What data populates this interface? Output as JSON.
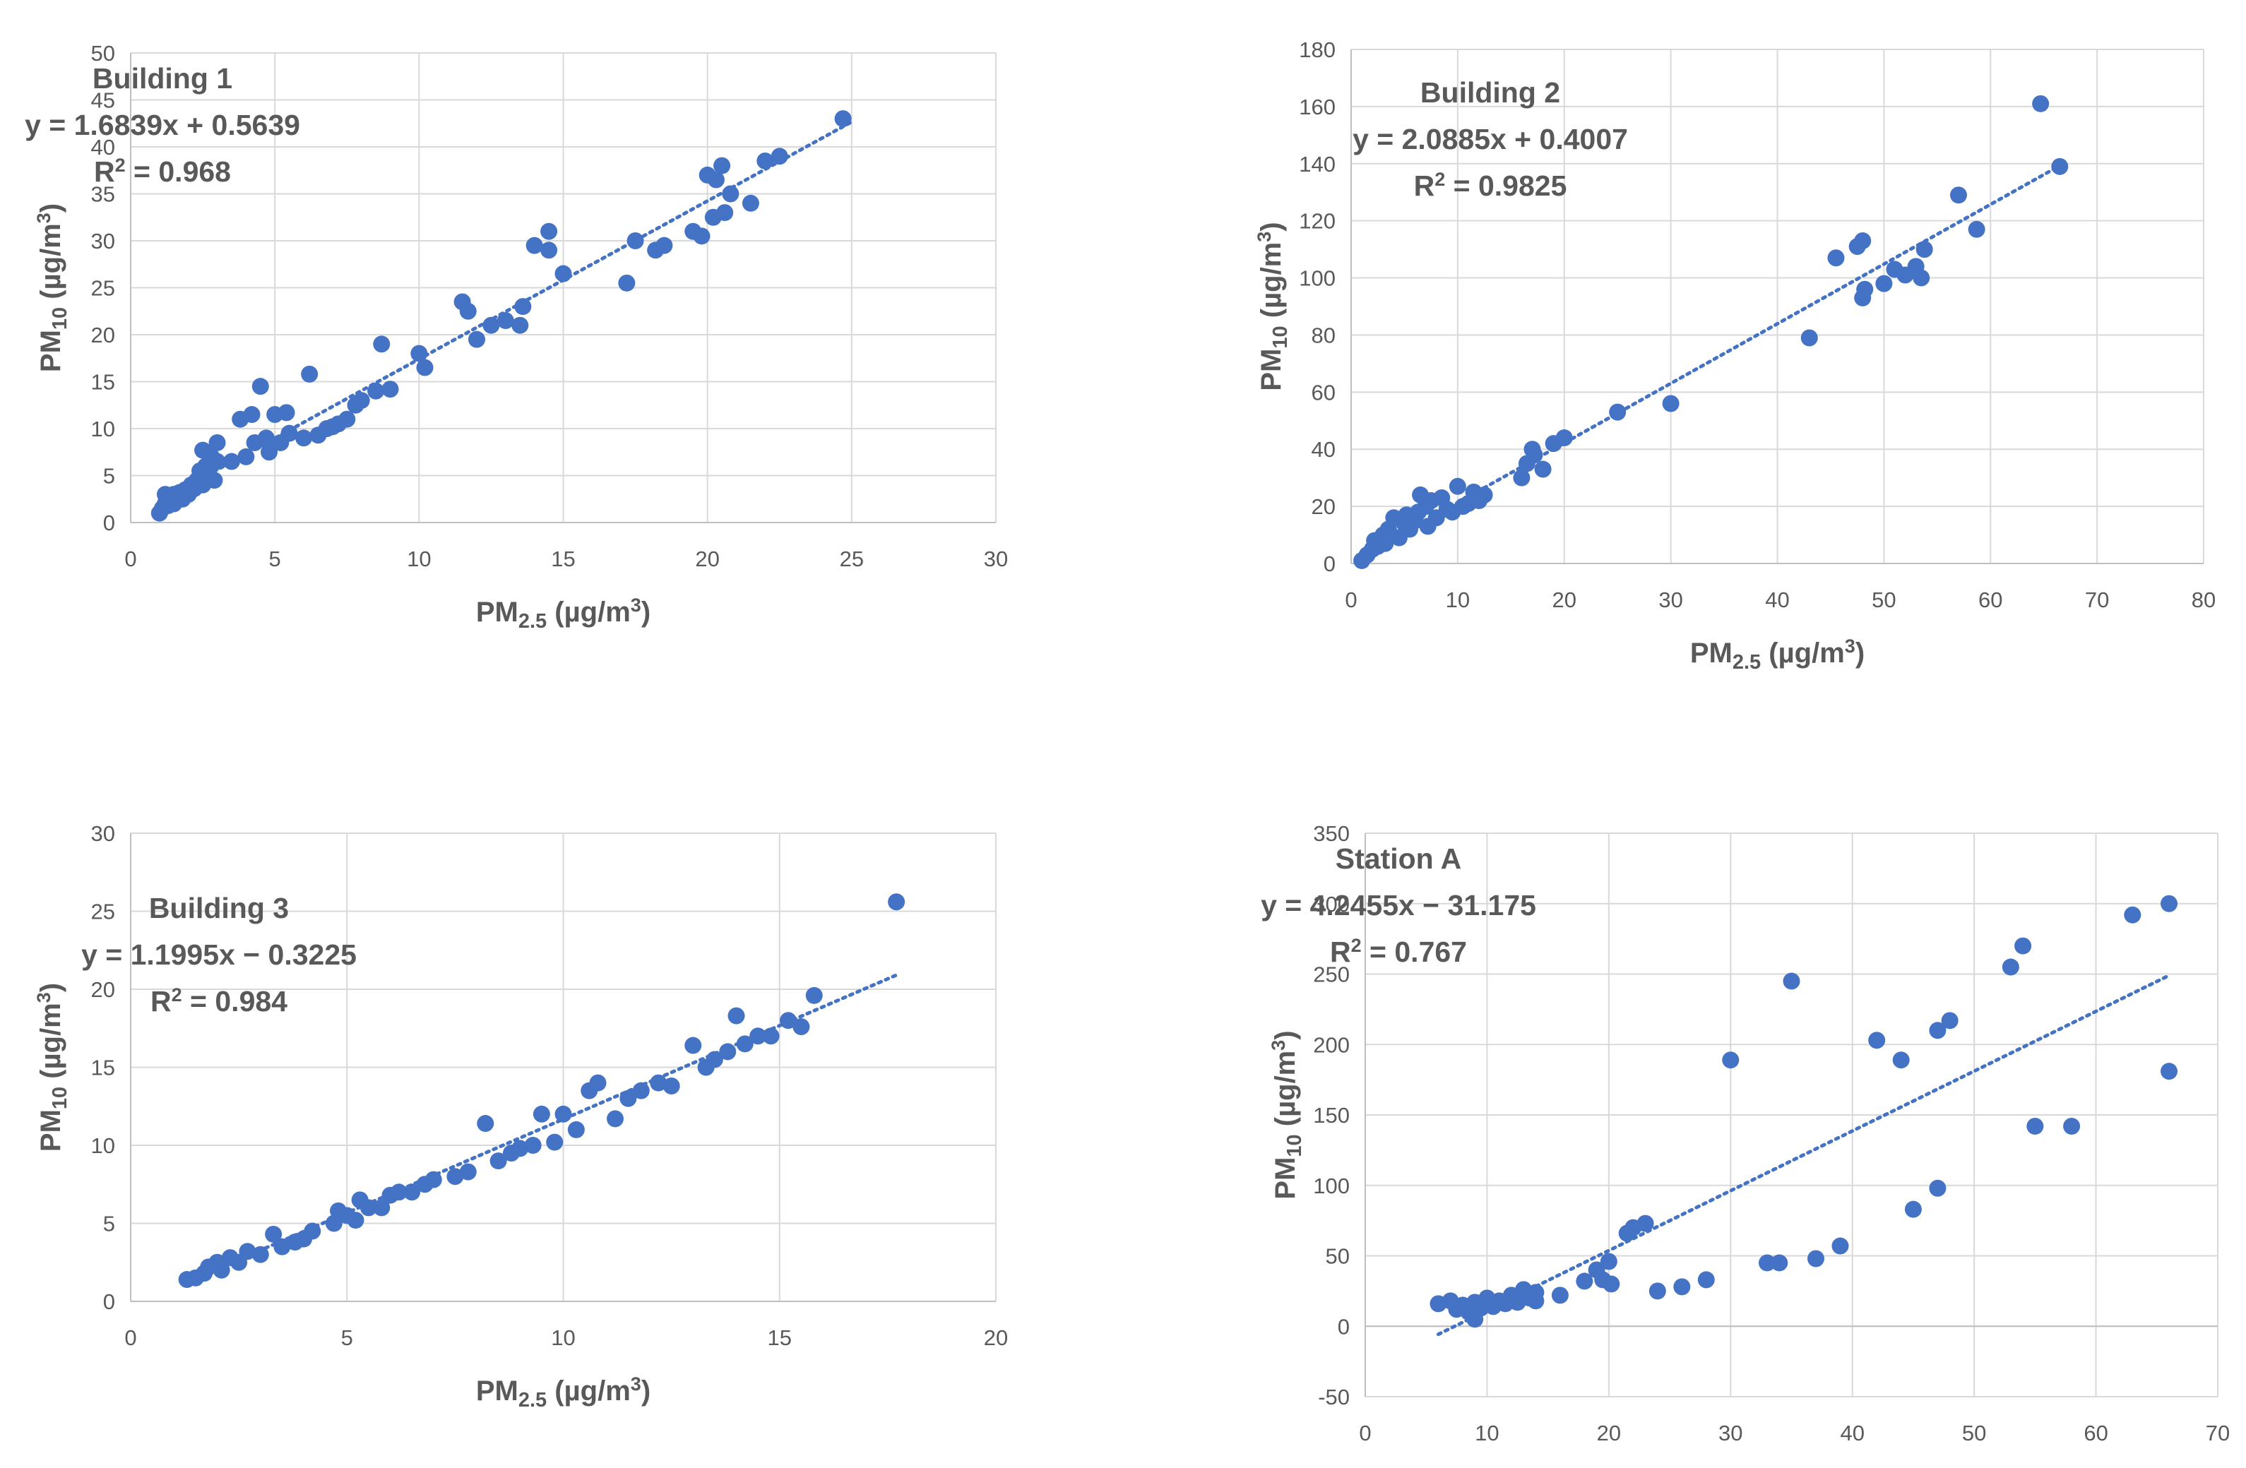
{
  "style": {
    "marker_color": "#4472C4",
    "trend_color": "#4472C4",
    "grid_color": "#d9d9d9",
    "text_color": "#595959"
  },
  "chart_data": [
    {
      "type": "scatter",
      "title": "Building 1",
      "equation": "y = 1.6839x + 0.5639",
      "r2_prefix": "R",
      "r2_sup": "2",
      "r2_value": " = 0.968",
      "xlabel": {
        "main": "PM",
        "sub": "2.5",
        "unit_open": " (µg/m",
        "unit_sup": "3",
        "unit_close": ")"
      },
      "ylabel": {
        "main": "PM",
        "sub": "10",
        "unit_open": " (µg/m",
        "unit_sup": "3",
        "unit_close": ")"
      },
      "xlim": [
        0,
        30
      ],
      "ylim": [
        0,
        50
      ],
      "xticks": [
        "0",
        "5",
        "10",
        "15",
        "20",
        "25",
        "30"
      ],
      "yticks": [
        "0",
        "5",
        "10",
        "15",
        "20",
        "25",
        "30",
        "35",
        "40",
        "45",
        "50"
      ],
      "trendline": {
        "slope": 1.6839,
        "intercept": 0.5639,
        "x_range": [
          1,
          25
        ]
      },
      "points": [
        [
          1,
          1
        ],
        [
          1.1,
          1.5
        ],
        [
          1.2,
          2
        ],
        [
          1.2,
          3
        ],
        [
          1.3,
          1.8
        ],
        [
          1.4,
          2.5
        ],
        [
          1.5,
          2
        ],
        [
          1.5,
          3
        ],
        [
          1.6,
          2.8
        ],
        [
          1.7,
          3.2
        ],
        [
          1.8,
          2.5
        ],
        [
          1.9,
          3.5
        ],
        [
          2,
          3
        ],
        [
          2.1,
          4
        ],
        [
          2.2,
          3.6
        ],
        [
          2.3,
          4.5
        ],
        [
          2.4,
          5.5
        ],
        [
          2.5,
          4
        ],
        [
          2.5,
          7.7
        ],
        [
          2.6,
          6
        ],
        [
          2.7,
          5
        ],
        [
          2.8,
          7
        ],
        [
          2.9,
          4.5
        ],
        [
          3,
          6.5
        ],
        [
          3,
          8.5
        ],
        [
          3.5,
          6.5
        ],
        [
          3.8,
          11
        ],
        [
          4,
          7
        ],
        [
          4.2,
          11.5
        ],
        [
          4.3,
          8.5
        ],
        [
          4.5,
          14.5
        ],
        [
          4.7,
          9
        ],
        [
          4.8,
          7.5
        ],
        [
          5,
          11.5
        ],
        [
          5.2,
          8.5
        ],
        [
          5.4,
          11.7
        ],
        [
          5.5,
          9.5
        ],
        [
          6,
          9
        ],
        [
          6.2,
          15.8
        ],
        [
          6.5,
          9.3
        ],
        [
          6.8,
          10
        ],
        [
          7,
          10.2
        ],
        [
          7.2,
          10.5
        ],
        [
          7.5,
          11
        ],
        [
          7.8,
          12.5
        ],
        [
          8,
          13
        ],
        [
          8.5,
          14
        ],
        [
          8.7,
          19
        ],
        [
          9,
          14.2
        ],
        [
          10,
          18
        ],
        [
          10.2,
          16.5
        ],
        [
          11.5,
          23.5
        ],
        [
          11.7,
          22.5
        ],
        [
          12,
          19.5
        ],
        [
          12.5,
          21
        ],
        [
          13,
          21.5
        ],
        [
          13.5,
          21
        ],
        [
          13.6,
          23
        ],
        [
          14,
          29.5
        ],
        [
          14.5,
          31
        ],
        [
          14.5,
          29
        ],
        [
          15,
          26.5
        ],
        [
          17.2,
          25.5
        ],
        [
          17.5,
          30
        ],
        [
          18.2,
          29
        ],
        [
          18.5,
          29.5
        ],
        [
          19.5,
          31
        ],
        [
          19.8,
          30.5
        ],
        [
          20,
          37
        ],
        [
          20.2,
          32.5
        ],
        [
          20.3,
          36.5
        ],
        [
          20.5,
          38
        ],
        [
          20.6,
          33
        ],
        [
          20.8,
          35
        ],
        [
          21.5,
          34
        ],
        [
          22,
          38.5
        ],
        [
          22.5,
          39
        ],
        [
          24.7,
          43
        ]
      ]
    },
    {
      "type": "scatter",
      "title": "Building 2",
      "equation": "y = 2.0885x + 0.4007",
      "r2_prefix": "R",
      "r2_sup": "2",
      "r2_value": " = 0.9825",
      "xlabel": {
        "main": "PM",
        "sub": "2.5",
        "unit_open": " (µg/m",
        "unit_sup": "3",
        "unit_close": ")"
      },
      "ylabel": {
        "main": "PM",
        "sub": "10",
        "unit_open": " (µg/m",
        "unit_sup": "3",
        "unit_close": ")"
      },
      "xlim": [
        0,
        80
      ],
      "ylim": [
        0,
        180
      ],
      "xticks": [
        "0",
        "10",
        "20",
        "30",
        "40",
        "50",
        "60",
        "70",
        "80"
      ],
      "yticks": [
        "0",
        "20",
        "40",
        "60",
        "80",
        "100",
        "120",
        "140",
        "160",
        "180"
      ],
      "trendline": {
        "slope": 2.0885,
        "intercept": 0.4007,
        "x_range": [
          1,
          67
        ]
      },
      "points": [
        [
          1,
          1
        ],
        [
          1.5,
          3
        ],
        [
          2,
          5
        ],
        [
          2.2,
          8
        ],
        [
          2.5,
          6
        ],
        [
          3,
          10
        ],
        [
          3.2,
          7
        ],
        [
          3.5,
          12
        ],
        [
          4,
          16
        ],
        [
          4.5,
          9
        ],
        [
          5,
          14
        ],
        [
          5.2,
          17
        ],
        [
          5.5,
          12
        ],
        [
          6,
          15
        ],
        [
          6.3,
          18
        ],
        [
          6.5,
          24
        ],
        [
          7,
          20
        ],
        [
          7.2,
          13
        ],
        [
          7.5,
          22
        ],
        [
          8,
          16
        ],
        [
          8.5,
          23
        ],
        [
          9,
          19
        ],
        [
          9.5,
          18
        ],
        [
          10,
          27
        ],
        [
          10.5,
          20
        ],
        [
          11,
          21
        ],
        [
          11.5,
          25
        ],
        [
          12,
          22
        ],
        [
          12.5,
          24
        ],
        [
          16,
          30
        ],
        [
          16.5,
          35
        ],
        [
          17,
          40
        ],
        [
          17.2,
          38
        ],
        [
          18,
          33
        ],
        [
          19,
          42
        ],
        [
          20,
          44
        ],
        [
          25,
          53
        ],
        [
          30,
          56
        ],
        [
          43,
          79
        ],
        [
          45.5,
          107
        ],
        [
          47.5,
          111
        ],
        [
          48,
          113
        ],
        [
          48,
          93
        ],
        [
          48.2,
          96
        ],
        [
          50,
          98
        ],
        [
          51,
          103
        ],
        [
          52,
          101
        ],
        [
          53,
          104
        ],
        [
          53.5,
          100
        ],
        [
          53.8,
          110
        ],
        [
          57,
          129
        ],
        [
          58.7,
          117
        ],
        [
          64.7,
          161
        ],
        [
          66.5,
          139
        ]
      ]
    },
    {
      "type": "scatter",
      "title": "Building 3",
      "equation": "y = 1.1995x − 0.3225",
      "r2_prefix": "R",
      "r2_sup": "2",
      "r2_value": " = 0.984",
      "xlabel": {
        "main": "PM",
        "sub": "2.5",
        "unit_open": " (µg/m",
        "unit_sup": "3",
        "unit_close": ")"
      },
      "ylabel": {
        "main": "PM",
        "sub": "10",
        "unit_open": " (µg/m",
        "unit_sup": "3",
        "unit_close": ")"
      },
      "xlim": [
        0,
        20
      ],
      "ylim": [
        0,
        30
      ],
      "xticks": [
        "0",
        "5",
        "10",
        "15",
        "20"
      ],
      "yticks": [
        "0",
        "5",
        "10",
        "15",
        "20",
        "25",
        "30"
      ],
      "trendline": {
        "slope": 1.1995,
        "intercept": -0.3225,
        "x_range": [
          1.3,
          17.7
        ]
      },
      "points": [
        [
          1.3,
          1.4
        ],
        [
          1.5,
          1.5
        ],
        [
          1.7,
          1.8
        ],
        [
          1.8,
          2.2
        ],
        [
          2,
          2.5
        ],
        [
          2.1,
          2
        ],
        [
          2.3,
          2.8
        ],
        [
          2.5,
          2.5
        ],
        [
          2.7,
          3.2
        ],
        [
          3,
          3
        ],
        [
          3.3,
          4.3
        ],
        [
          3.5,
          3.5
        ],
        [
          3.8,
          3.8
        ],
        [
          4,
          4
        ],
        [
          4.2,
          4.5
        ],
        [
          4.7,
          5
        ],
        [
          4.8,
          5.8
        ],
        [
          5,
          5.5
        ],
        [
          5.2,
          5.2
        ],
        [
          5.3,
          6.5
        ],
        [
          5.5,
          6
        ],
        [
          5.8,
          6
        ],
        [
          6,
          6.8
        ],
        [
          6.2,
          7
        ],
        [
          6.5,
          7
        ],
        [
          6.8,
          7.5
        ],
        [
          7,
          7.8
        ],
        [
          7.5,
          8
        ],
        [
          7.8,
          8.3
        ],
        [
          8.2,
          11.4
        ],
        [
          8.5,
          9
        ],
        [
          8.8,
          9.5
        ],
        [
          9,
          9.8
        ],
        [
          9.3,
          10
        ],
        [
          9.5,
          12
        ],
        [
          9.8,
          10.2
        ],
        [
          10,
          12
        ],
        [
          10.3,
          11
        ],
        [
          10.6,
          13.5
        ],
        [
          10.8,
          14
        ],
        [
          11.2,
          11.7
        ],
        [
          11.5,
          13
        ],
        [
          11.8,
          13.5
        ],
        [
          12.2,
          14
        ],
        [
          12.5,
          13.8
        ],
        [
          13,
          16.4
        ],
        [
          13.3,
          15
        ],
        [
          13.5,
          15.5
        ],
        [
          13.8,
          16
        ],
        [
          14,
          18.3
        ],
        [
          14.2,
          16.5
        ],
        [
          14.5,
          17
        ],
        [
          14.8,
          17
        ],
        [
          15.2,
          18
        ],
        [
          15.5,
          17.6
        ],
        [
          15.8,
          19.6
        ],
        [
          17.7,
          25.6
        ]
      ]
    },
    {
      "type": "scatter",
      "title": "Station A",
      "equation": "y = 4.2455x − 31.175",
      "r2_prefix": "R",
      "r2_sup": "2",
      "r2_value": " = 0.767",
      "xlabel": {
        "main": "PM",
        "sub": "2.5",
        "unit_open": " (µg/m",
        "unit_sup": "3",
        "unit_close": ")"
      },
      "ylabel": {
        "main": "PM",
        "sub": "10",
        "unit_open": " (µg/m",
        "unit_sup": "3",
        "unit_close": ")"
      },
      "xlim": [
        0,
        70
      ],
      "ylim": [
        -50,
        350
      ],
      "xticks": [
        "0",
        "10",
        "20",
        "30",
        "40",
        "50",
        "60",
        "70"
      ],
      "yticks": [
        "-50",
        "0",
        "50",
        "100",
        "150",
        "200",
        "250",
        "300",
        "350"
      ],
      "trendline": {
        "slope": 4.2455,
        "intercept": -31.175,
        "x_range": [
          6,
          66
        ]
      },
      "points": [
        [
          6,
          16
        ],
        [
          7,
          18
        ],
        [
          7.5,
          12
        ],
        [
          8,
          15
        ],
        [
          8.5,
          10
        ],
        [
          9,
          17
        ],
        [
          9,
          5
        ],
        [
          9.5,
          13
        ],
        [
          10,
          20
        ],
        [
          10.5,
          14
        ],
        [
          11,
          18
        ],
        [
          11.5,
          16
        ],
        [
          12,
          22
        ],
        [
          12.5,
          17
        ],
        [
          13,
          26
        ],
        [
          13.5,
          20
        ],
        [
          14,
          18
        ],
        [
          14,
          24
        ],
        [
          16,
          22
        ],
        [
          18,
          32
        ],
        [
          19,
          40
        ],
        [
          19.5,
          33
        ],
        [
          20,
          46
        ],
        [
          20.2,
          30
        ],
        [
          21.5,
          66
        ],
        [
          22,
          70
        ],
        [
          23,
          73
        ],
        [
          24,
          25
        ],
        [
          26,
          28
        ],
        [
          28,
          33
        ],
        [
          30,
          189
        ],
        [
          33,
          45
        ],
        [
          34,
          45
        ],
        [
          35,
          245
        ],
        [
          37,
          48
        ],
        [
          39,
          57
        ],
        [
          42,
          203
        ],
        [
          44,
          189
        ],
        [
          45,
          83
        ],
        [
          47,
          98
        ],
        [
          47,
          210
        ],
        [
          48,
          217
        ],
        [
          53,
          255
        ],
        [
          54,
          270
        ],
        [
          55,
          142
        ],
        [
          58,
          142
        ],
        [
          63,
          292
        ],
        [
          66,
          300
        ],
        [
          66,
          181
        ]
      ]
    }
  ]
}
